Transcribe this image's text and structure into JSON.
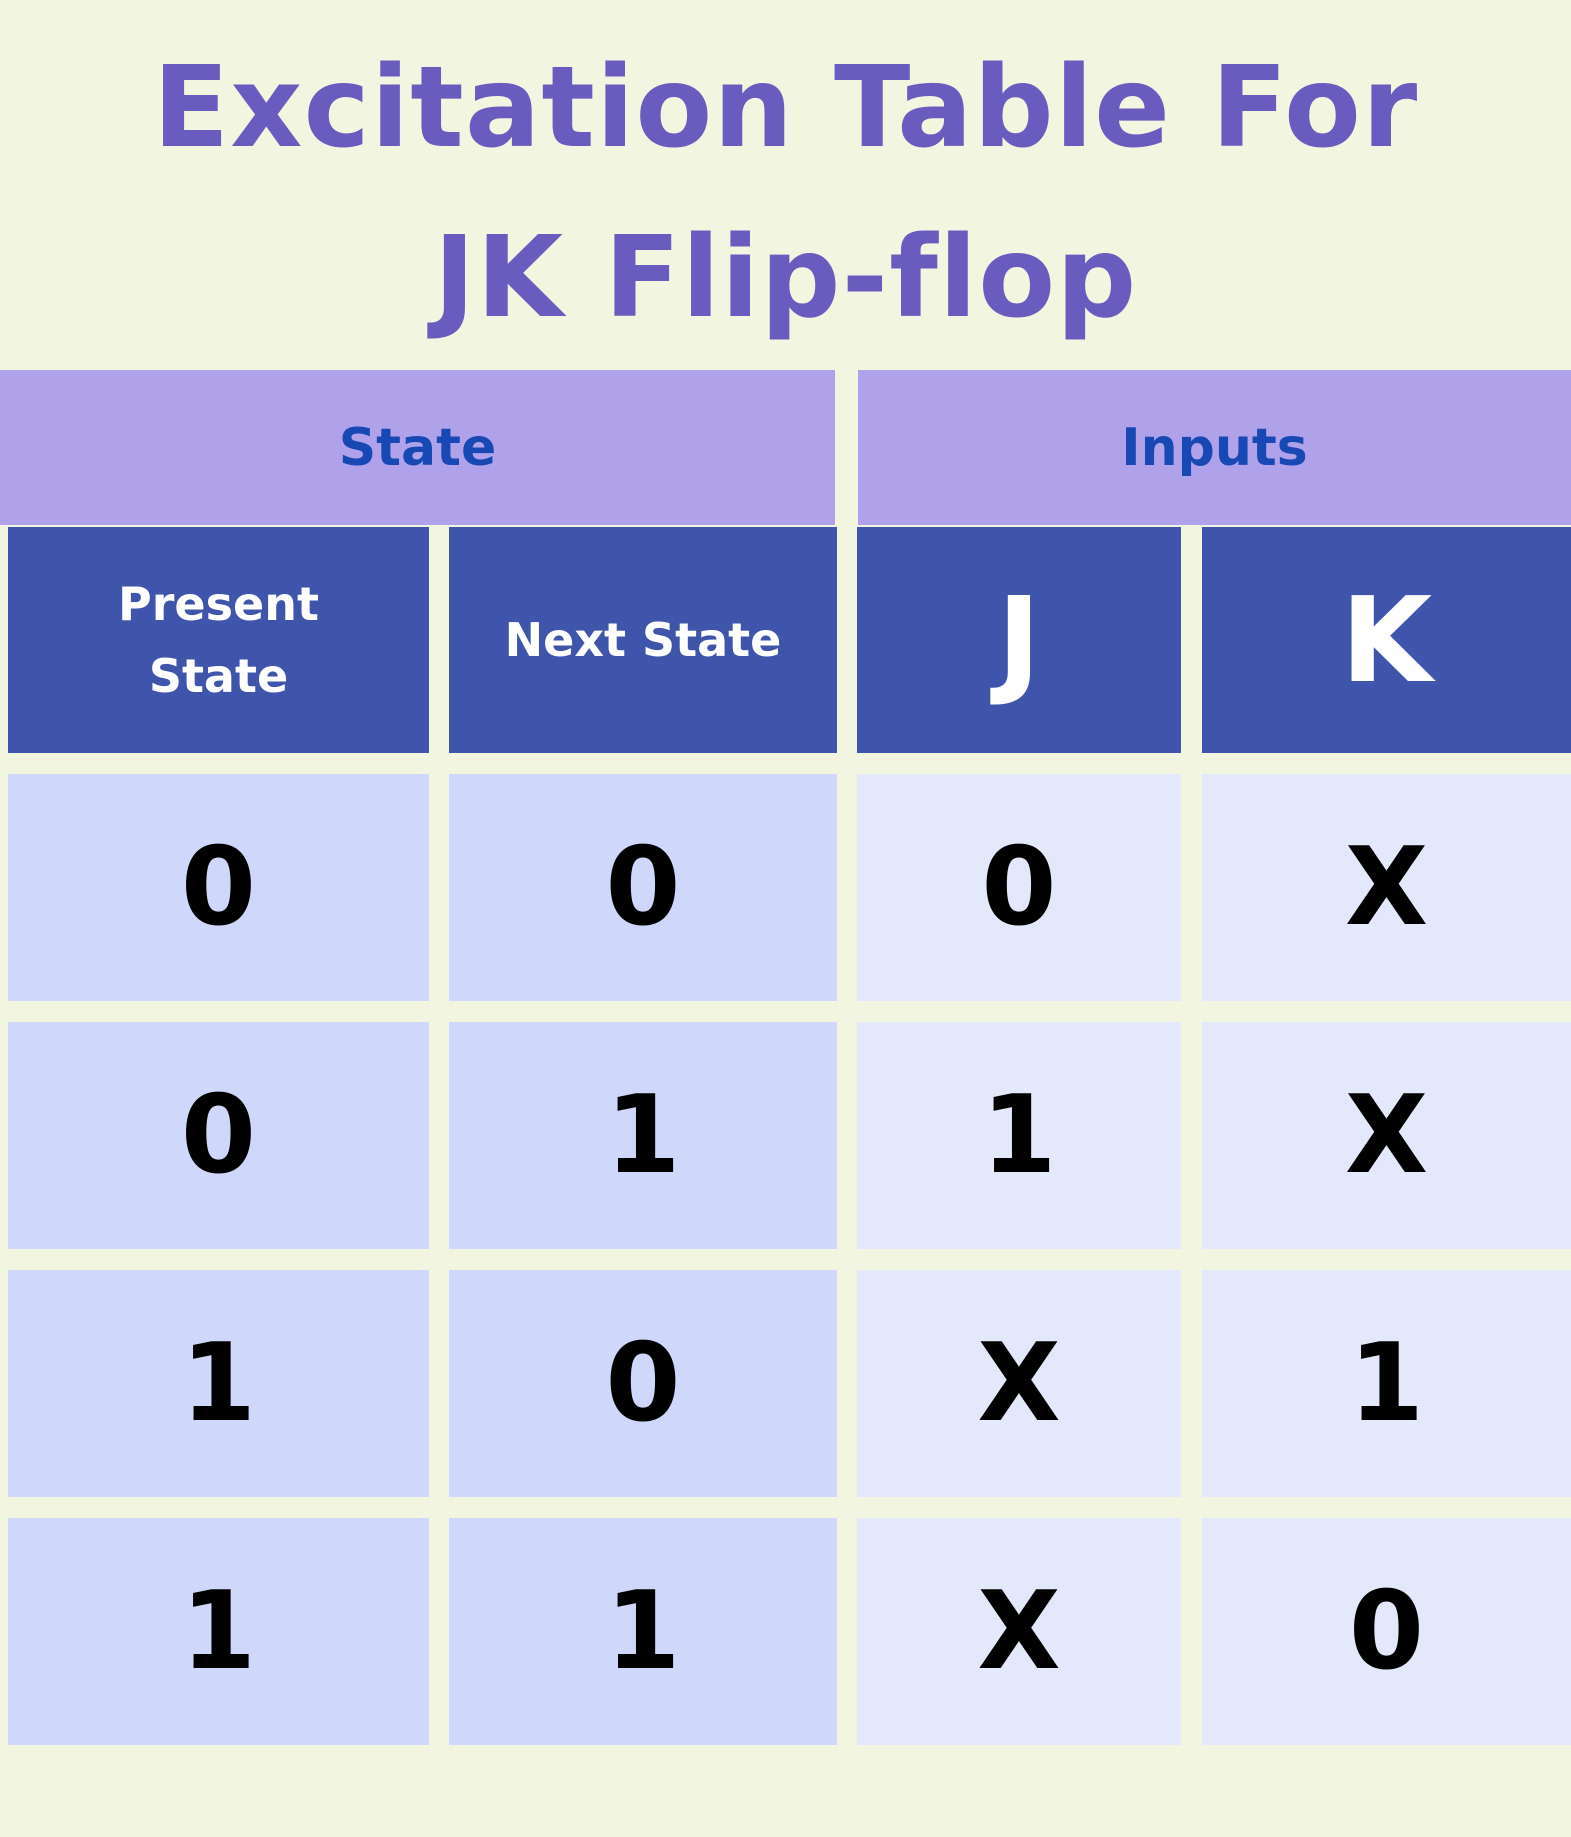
{
  "title": {
    "line1": "Excitation Table For",
    "line2": "JK Flip-flop"
  },
  "group_headers": {
    "state": "State",
    "inputs": "Inputs"
  },
  "column_headers": {
    "present_state_line1": "Present",
    "present_state_line2": "State",
    "next_state": "Next State",
    "j": "J",
    "k": "K"
  },
  "rows": [
    {
      "present": "0",
      "next": "0",
      "j": "0",
      "k": "X"
    },
    {
      "present": "0",
      "next": "1",
      "j": "1",
      "k": "X"
    },
    {
      "present": "1",
      "next": "0",
      "j": "X",
      "k": "1"
    },
    {
      "present": "1",
      "next": "1",
      "j": "X",
      "k": "0"
    }
  ],
  "colors": {
    "background": "#f2f6e1",
    "title": "#6a5cbf",
    "group_header_bg": "#b0a2ea",
    "group_header_text": "#1848b4",
    "column_header_bg": "#3f55ac",
    "state_cell_bg": "#cfd8fb",
    "input_cell_bg": "#e3e8fb"
  }
}
